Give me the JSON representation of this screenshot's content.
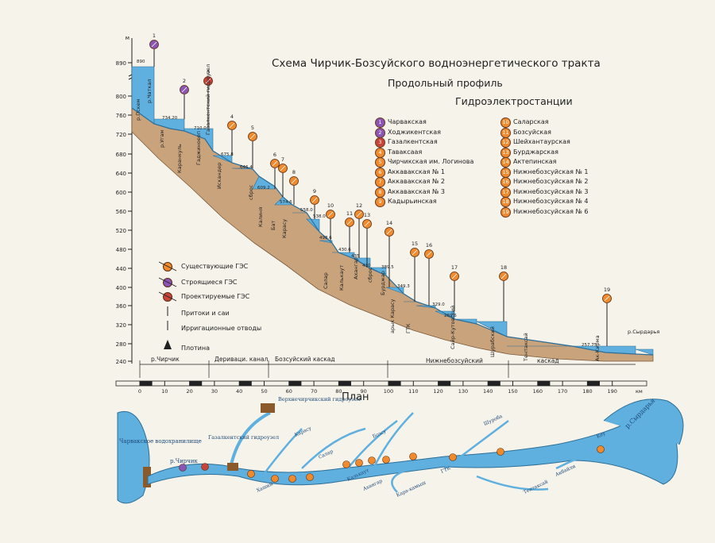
{
  "titles": {
    "main": "Схема Чирчик-Бозсуйского  водноэнергетического тракта",
    "profile": "Продольный профиль",
    "stations": "Гидроэлектростанции",
    "plan": "План"
  },
  "colors": {
    "water": "#5fb0de",
    "ground": "#c9a37b",
    "existing": "#f08a2c",
    "building": "#8a55b4",
    "projected": "#c8443a"
  },
  "y_axis": {
    "unit": "м",
    "ticks": [
      "890",
      "800",
      "760",
      "720",
      "680",
      "640",
      "600",
      "560",
      "520",
      "480",
      "440",
      "400",
      "360",
      "320",
      "280",
      "240"
    ]
  },
  "x_axis": {
    "unit": "км",
    "ticks": [
      "0",
      "10",
      "20",
      "30",
      "40",
      "50",
      "60",
      "70",
      "80",
      "90",
      "100",
      "110",
      "120",
      "130",
      "140",
      "150",
      "160",
      "170",
      "180",
      "190"
    ]
  },
  "sections": [
    "р.Чирчик",
    "Дериваци. канал",
    "Бозсуйский каскад",
    "Нижнебозсуйский",
    "каскад"
  ],
  "stations": [
    {
      "n": "1",
      "name": "Чарвакская",
      "status": "building"
    },
    {
      "n": "2",
      "name": "Ходжикентская",
      "status": "building"
    },
    {
      "n": "3",
      "name": "Газалкентская",
      "status": "projected"
    },
    {
      "n": "4",
      "name": "Таваксаая",
      "status": "existing"
    },
    {
      "n": "5",
      "name": "Чирчикская им. Логинова",
      "status": "existing"
    },
    {
      "n": "6",
      "name": "Аккавакская № 1",
      "status": "existing"
    },
    {
      "n": "7",
      "name": "Аккавакская № 2",
      "status": "existing"
    },
    {
      "n": "8",
      "name": "Аккавакская № 3",
      "status": "existing"
    },
    {
      "n": "9",
      "name": "Кадырьинская",
      "status": "existing"
    },
    {
      "n": "10",
      "name": "Саларская",
      "status": "existing"
    },
    {
      "n": "11",
      "name": "Бозсуйская",
      "status": "existing"
    },
    {
      "n": "12",
      "name": "Шейхантаурская",
      "status": "existing"
    },
    {
      "n": "13",
      "name": "Бурджарская",
      "status": "existing"
    },
    {
      "n": "14",
      "name": "Актепинская",
      "status": "existing"
    },
    {
      "n": "15",
      "name": "Нижнебозсуйская № 1",
      "status": "existing"
    },
    {
      "n": "16",
      "name": "Нижнебозсуйская № 2",
      "status": "existing"
    },
    {
      "n": "17",
      "name": "Нижнебозсуйская № 3",
      "status": "existing"
    },
    {
      "n": "18",
      "name": "Нижнебозсуйская № 4",
      "status": "existing"
    },
    {
      "n": "19",
      "name": "Нижнебозсуйская № 6",
      "status": "existing"
    }
  ],
  "legend": {
    "existing": "Существующие  ГЭС",
    "building": "Строящиеся  ГЭС",
    "projected": "Проектируемые ГЭС",
    "tributaries": "Притоки и саи",
    "irrigation": "Ирригационные отводы",
    "dam": "Плотина"
  },
  "levels": [
    "890",
    "734.20",
    "710.0",
    "675.8",
    "646.4",
    "609.2",
    "574.6",
    "558.0",
    "538.0",
    "498.6",
    "430.6",
    "435",
    "430",
    "389.5",
    "349.3",
    "329.0",
    "269.6",
    "257.75"
  ],
  "profile_labels": [
    "р.Пскем",
    "р.Чаткал",
    "р.Угам",
    "Каранкуль",
    "Гаджиноеоп",
    "Газалкентский гидроузел",
    "Искандер",
    "сброс",
    "Калиня",
    "Бат",
    "Карасу",
    "Салар",
    "Калькаут",
    "Ахангар",
    "сброс",
    "Бурджар",
    "арык Карасу",
    "ГТК",
    "Сайр-Кутовский",
    "Шурабский",
    "Тентаксай",
    "Ак-Кирма",
    "р.Сырдарья"
  ],
  "plan_labels": {
    "reservoir": "Чарвакское водохранилище",
    "chirchik": "р.Чирчик",
    "upper_node": "Верхнечирчикский гидроузел",
    "gazalkent_node": "Газалкентский гидроузел",
    "syrdarya": "р.Сырдарья",
    "rivers": [
      "Хашим",
      "Карасу",
      "Салар",
      "Бозсу",
      "Ахангар",
      "Калькаут",
      "Кара-камыш",
      "ГТК",
      "Шуроба",
      "Тентаксай",
      "Акбайли",
      "Кеу"
    ]
  }
}
